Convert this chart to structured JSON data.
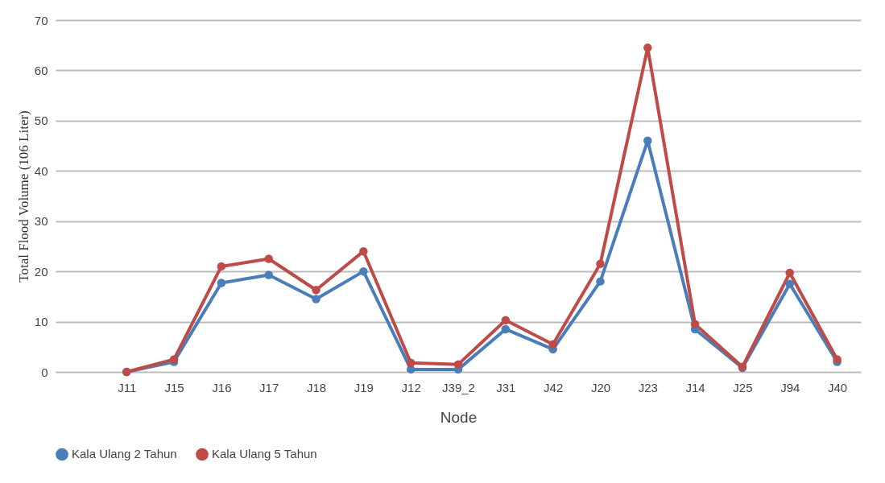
{
  "chart_data": {
    "type": "line",
    "xlabel": "Node",
    "ylabel": "Total Flood Volume (106 Liter)",
    "categories": [
      null,
      "J11",
      "J15",
      "J16",
      "J17",
      "J18",
      "J19",
      "J12",
      "J39_2",
      "J31",
      "J42",
      "J20",
      "J23",
      "J14",
      "J25",
      "J94",
      "J40"
    ],
    "series": [
      {
        "name": "Kala Ulang 2 Tahun",
        "color": "#4a7ebb",
        "values": [
          null,
          0,
          2,
          17.7,
          19.3,
          14.5,
          20,
          0.5,
          0.5,
          8.5,
          4.5,
          18,
          46,
          8.5,
          0.8,
          17.5,
          2
        ]
      },
      {
        "name": "Kala Ulang 5 Tahun",
        "color": "#be4b48",
        "values": [
          null,
          0,
          2.5,
          21,
          22.5,
          16.3,
          24,
          1.8,
          1.5,
          10.3,
          5.5,
          21.5,
          64.5,
          9.5,
          1,
          19.7,
          2.5
        ]
      }
    ],
    "ylim": [
      0,
      70
    ],
    "yticks": [
      0,
      10,
      20,
      30,
      40,
      50,
      60,
      70
    ],
    "grid": "y",
    "legend": "bottom",
    "marker": "circle",
    "line_style": "solid"
  }
}
